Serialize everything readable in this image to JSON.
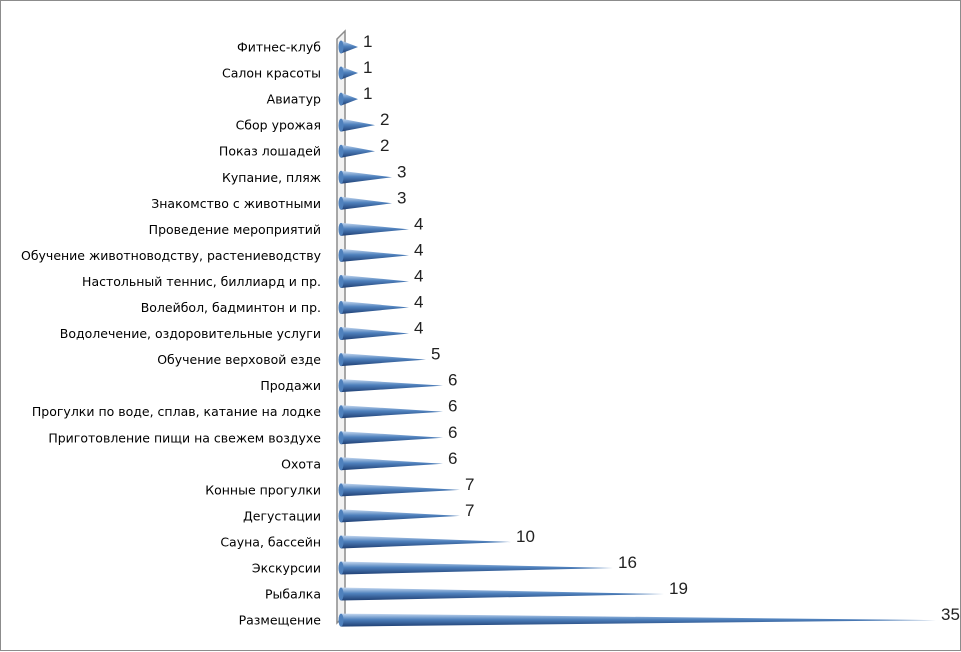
{
  "chart_data": {
    "type": "bar",
    "orientation": "horizontal",
    "bar_shape": "cone",
    "categories": [
      "Фитнес-клуб",
      "Салон красоты",
      "Авиатур",
      "Сбор урожая",
      "Показ лошадей",
      "Купание, пляж",
      "Знакомство с животными",
      "Проведение мероприятий",
      "Обучение животноводству, растениеводству",
      "Настольный теннис, биллиард и пр.",
      "Волейбол, бадминтон и пр.",
      "Водолечение, оздоровительные услуги",
      "Обучение верховой езде",
      "Продажи",
      "Прогулки по воде, сплав, катание на лодке",
      "Приготовление пищи на свежем воздухе",
      "Охота",
      "Конные прогулки",
      "Дегустации",
      "Сауна, бассейн",
      "Экскурсии",
      "Рыбалка",
      "Размещение"
    ],
    "values": [
      1,
      1,
      1,
      2,
      2,
      3,
      3,
      4,
      4,
      4,
      4,
      4,
      5,
      6,
      6,
      6,
      6,
      7,
      7,
      10,
      16,
      19,
      35
    ],
    "xlim": [
      0,
      35
    ],
    "grid": false,
    "legend": "none",
    "data_labels": true,
    "colors": {
      "bar_light": "#c6d9f1",
      "bar_mid": "#4f81bd",
      "bar_dark": "#1f3f73",
      "axis": "#8c8c8c",
      "axis_face": "#f2f2f2"
    }
  }
}
